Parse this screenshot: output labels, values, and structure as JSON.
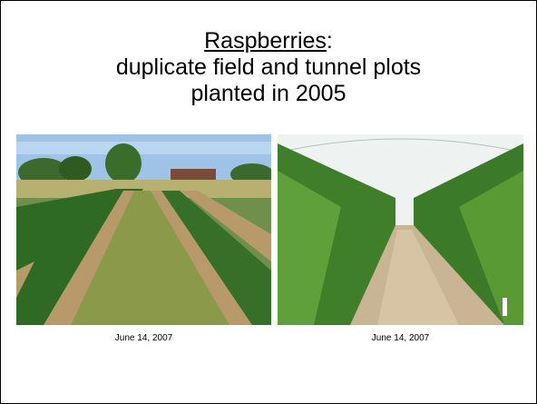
{
  "slide": {
    "title": {
      "underlined": "Raspberries",
      "suffix": ":",
      "lines": [
        "duplicate field and tunnel plots",
        "planted in 2005"
      ]
    },
    "photos": [
      {
        "caption": "June 14, 2007"
      },
      {
        "caption": "June 14, 2007"
      }
    ]
  }
}
